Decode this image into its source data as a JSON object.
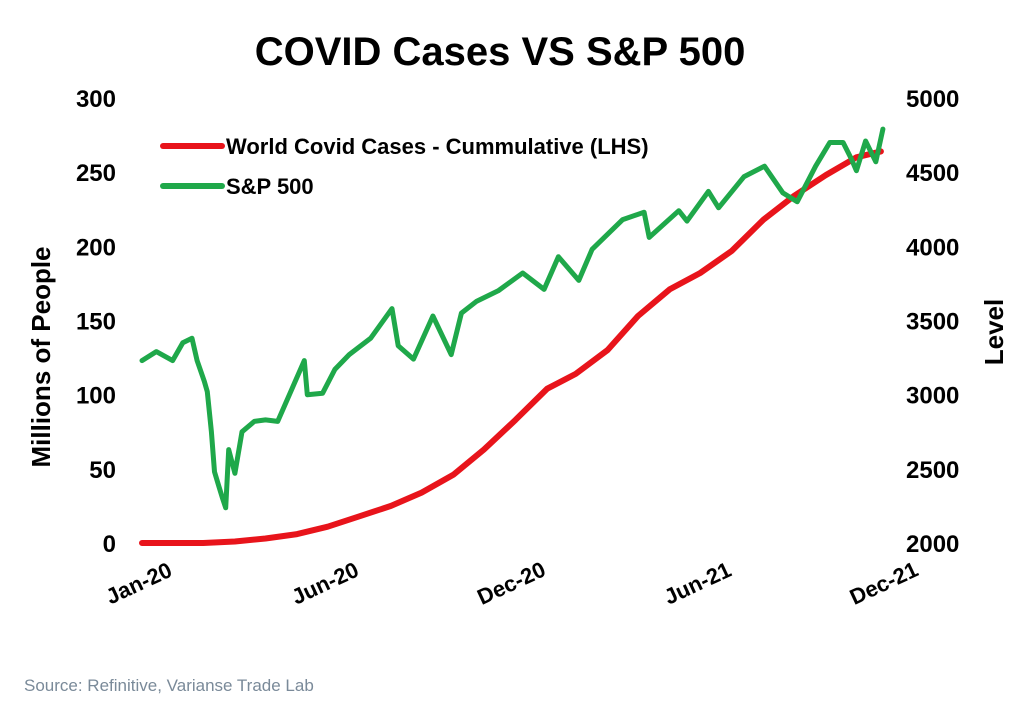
{
  "chart_data": {
    "type": "line",
    "title": "COVID Cases VS S&P 500",
    "ylabel_left": "Millions of People",
    "ylabel_right": "Level",
    "x_ticks": [
      "Jan-20",
      "Jun-20",
      "Dec-20",
      "Jun-21",
      "Dec-21"
    ],
    "x_range": [
      "2020-01-01",
      "2021-12-31"
    ],
    "y_left": {
      "range": [
        0,
        300
      ],
      "ticks": [
        "0",
        "50",
        "100",
        "150",
        "200",
        "250",
        "300"
      ]
    },
    "y_right": {
      "range": [
        2000,
        5000
      ],
      "ticks": [
        "2000",
        "2500",
        "3000",
        "3500",
        "4000",
        "4500",
        "5000"
      ]
    },
    "legend_position": "top-left",
    "grid": false,
    "series": [
      {
        "name": "World Covid Cases - Cummulative (LHS)",
        "axis": "left",
        "color": "#e8141b",
        "points": [
          [
            "2020-01-01",
            0
          ],
          [
            "2020-02-01",
            0
          ],
          [
            "2020-03-01",
            0
          ],
          [
            "2020-04-01",
            1
          ],
          [
            "2020-05-01",
            3
          ],
          [
            "2020-06-01",
            6
          ],
          [
            "2020-07-01",
            11
          ],
          [
            "2020-08-01",
            18
          ],
          [
            "2020-09-01",
            25
          ],
          [
            "2020-10-01",
            34
          ],
          [
            "2020-11-01",
            46
          ],
          [
            "2020-12-01",
            63
          ],
          [
            "2021-01-01",
            83
          ],
          [
            "2021-02-01",
            104
          ],
          [
            "2021-03-01",
            114
          ],
          [
            "2021-04-01",
            130
          ],
          [
            "2021-05-01",
            153
          ],
          [
            "2021-06-01",
            171
          ],
          [
            "2021-07-01",
            182
          ],
          [
            "2021-08-01",
            197
          ],
          [
            "2021-09-01",
            218
          ],
          [
            "2021-10-01",
            234
          ],
          [
            "2021-11-01",
            248
          ],
          [
            "2021-12-01",
            260
          ],
          [
            "2021-12-25",
            264
          ]
        ]
      },
      {
        "name": "S&P 500",
        "axis": "right",
        "color": "#1fa84a",
        "points": [
          [
            "2020-01-01",
            3230
          ],
          [
            "2020-01-15",
            3290
          ],
          [
            "2020-01-31",
            3230
          ],
          [
            "2020-02-10",
            3350
          ],
          [
            "2020-02-19",
            3380
          ],
          [
            "2020-02-24",
            3230
          ],
          [
            "2020-03-02",
            3090
          ],
          [
            "2020-03-05",
            3020
          ],
          [
            "2020-03-09",
            2750
          ],
          [
            "2020-03-12",
            2480
          ],
          [
            "2020-03-16",
            2390
          ],
          [
            "2020-03-20",
            2300
          ],
          [
            "2020-03-23",
            2237
          ],
          [
            "2020-03-26",
            2630
          ],
          [
            "2020-04-01",
            2470
          ],
          [
            "2020-04-08",
            2750
          ],
          [
            "2020-04-20",
            2820
          ],
          [
            "2020-05-01",
            2830
          ],
          [
            "2020-05-13",
            2820
          ],
          [
            "2020-05-27",
            3040
          ],
          [
            "2020-06-08",
            3230
          ],
          [
            "2020-06-11",
            3000
          ],
          [
            "2020-06-26",
            3010
          ],
          [
            "2020-07-08",
            3170
          ],
          [
            "2020-07-22",
            3270
          ],
          [
            "2020-08-12",
            3380
          ],
          [
            "2020-09-02",
            3580
          ],
          [
            "2020-09-08",
            3330
          ],
          [
            "2020-09-23",
            3240
          ],
          [
            "2020-10-12",
            3530
          ],
          [
            "2020-10-30",
            3270
          ],
          [
            "2020-11-09",
            3550
          ],
          [
            "2020-11-24",
            3630
          ],
          [
            "2020-12-15",
            3700
          ],
          [
            "2021-01-08",
            3820
          ],
          [
            "2021-01-29",
            3710
          ],
          [
            "2021-02-12",
            3930
          ],
          [
            "2021-03-04",
            3770
          ],
          [
            "2021-03-17",
            3980
          ],
          [
            "2021-04-16",
            4180
          ],
          [
            "2021-05-07",
            4230
          ],
          [
            "2021-05-12",
            4060
          ],
          [
            "2021-06-10",
            4240
          ],
          [
            "2021-06-18",
            4170
          ],
          [
            "2021-07-09",
            4370
          ],
          [
            "2021-07-19",
            4260
          ],
          [
            "2021-08-13",
            4470
          ],
          [
            "2021-09-02",
            4540
          ],
          [
            "2021-09-20",
            4360
          ],
          [
            "2021-10-04",
            4300
          ],
          [
            "2021-10-22",
            4540
          ],
          [
            "2021-11-05",
            4700
          ],
          [
            "2021-11-18",
            4700
          ],
          [
            "2021-11-26",
            4590
          ],
          [
            "2021-12-01",
            4510
          ],
          [
            "2021-12-10",
            4710
          ],
          [
            "2021-12-20",
            4570
          ],
          [
            "2021-12-27",
            4790
          ]
        ]
      }
    ]
  },
  "source": "Source: Refinitive, Varianse Trade Lab"
}
